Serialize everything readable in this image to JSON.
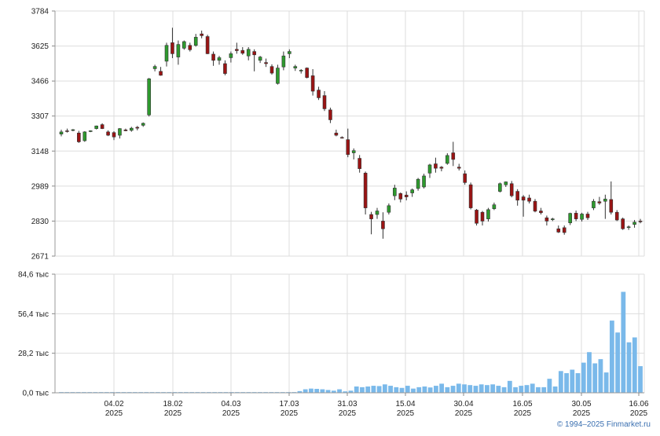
{
  "copyright": "© 1994–2025 Finmarket.ru",
  "chart_data": [
    {
      "type": "candlestick",
      "ylim": [
        2671,
        3784
      ],
      "yticks": [
        "3784",
        "3625",
        "3466",
        "3307",
        "3148",
        "2989",
        "2830",
        "2671"
      ],
      "grid": true,
      "colors": {
        "up": "#2e9a2e",
        "down": "#9a1414",
        "wick": "#333333",
        "grid": "#dddddd"
      },
      "candles": [
        [
          3225,
          3245,
          3215,
          3235
        ],
        [
          3240,
          3250,
          3232,
          3238
        ],
        [
          3242,
          3248,
          3238,
          3245
        ],
        [
          3230,
          3240,
          3185,
          3190
        ],
        [
          3195,
          3238,
          3190,
          3235
        ],
        [
          3238,
          3242,
          3234,
          3240
        ],
        [
          3250,
          3264,
          3246,
          3262
        ],
        [
          3268,
          3274,
          3248,
          3250
        ],
        [
          3235,
          3242,
          3216,
          3220
        ],
        [
          3232,
          3238,
          3198,
          3212
        ],
        [
          3220,
          3252,
          3205,
          3250
        ],
        [
          3244,
          3250,
          3238,
          3240
        ],
        [
          3242,
          3258,
          3236,
          3252
        ],
        [
          3256,
          3262,
          3242,
          3252
        ],
        [
          3265,
          3278,
          3258,
          3274
        ],
        [
          3312,
          3480,
          3305,
          3476
        ],
        [
          3522,
          3540,
          3510,
          3532
        ],
        [
          3510,
          3530,
          3490,
          3492
        ],
        [
          3556,
          3640,
          3532,
          3628
        ],
        [
          3640,
          3708,
          3570,
          3590
        ],
        [
          3575,
          3650,
          3540,
          3632
        ],
        [
          3615,
          3650,
          3608,
          3645
        ],
        [
          3628,
          3640,
          3600,
          3608
        ],
        [
          3628,
          3680,
          3622,
          3665
        ],
        [
          3680,
          3695,
          3660,
          3672
        ],
        [
          3668,
          3676,
          3588,
          3590
        ],
        [
          3588,
          3600,
          3535,
          3560
        ],
        [
          3560,
          3580,
          3540,
          3572
        ],
        [
          3545,
          3560,
          3492,
          3500
        ],
        [
          3572,
          3600,
          3550,
          3590
        ],
        [
          3610,
          3640,
          3590,
          3604
        ],
        [
          3605,
          3620,
          3585,
          3592
        ],
        [
          3580,
          3620,
          3560,
          3610
        ],
        [
          3600,
          3610,
          3510,
          3585
        ],
        [
          3560,
          3580,
          3548,
          3575
        ],
        [
          3550,
          3568,
          3530,
          3545
        ],
        [
          3532,
          3542,
          3495,
          3502
        ],
        [
          3455,
          3540,
          3450,
          3525
        ],
        [
          3530,
          3600,
          3515,
          3580
        ],
        [
          3590,
          3610,
          3570,
          3600
        ],
        [
          3525,
          3540,
          3512,
          3532
        ],
        [
          3514,
          3520,
          3500,
          3515
        ],
        [
          3525,
          3528,
          3478,
          3482
        ],
        [
          3490,
          3520,
          3400,
          3420
        ],
        [
          3425,
          3440,
          3380,
          3390
        ],
        [
          3400,
          3420,
          3330,
          3340
        ],
        [
          3335,
          3345,
          3275,
          3290
        ],
        [
          3230,
          3245,
          3215,
          3220
        ],
        [
          3210,
          3215,
          3205,
          3208
        ],
        [
          3200,
          3250,
          3120,
          3132
        ],
        [
          3140,
          3160,
          3110,
          3150
        ],
        [
          3115,
          3130,
          3050,
          3068
        ],
        [
          3048,
          3055,
          2860,
          2890
        ],
        [
          2860,
          2872,
          2770,
          2840
        ],
        [
          2860,
          2890,
          2840,
          2876
        ],
        [
          2830,
          2870,
          2750,
          2795
        ],
        [
          2870,
          2910,
          2860,
          2900
        ],
        [
          2945,
          2995,
          2925,
          2980
        ],
        [
          2955,
          2960,
          2915,
          2930
        ],
        [
          2948,
          2965,
          2924,
          2940
        ],
        [
          2958,
          2978,
          2940,
          2972
        ],
        [
          2978,
          3026,
          2968,
          3020
        ],
        [
          2985,
          3045,
          2978,
          3035
        ],
        [
          3048,
          3090,
          3026,
          3085
        ],
        [
          3090,
          3118,
          3050,
          3070
        ],
        [
          3075,
          3080,
          3056,
          3070
        ],
        [
          3092,
          3138,
          3086,
          3128
        ],
        [
          3140,
          3190,
          3080,
          3110
        ],
        [
          3075,
          3090,
          3060,
          3070
        ],
        [
          3045,
          3060,
          2995,
          3005
        ],
        [
          2995,
          3005,
          2883,
          2890
        ],
        [
          2880,
          2885,
          2810,
          2820
        ],
        [
          2870,
          2876,
          2810,
          2830
        ],
        [
          2840,
          2890,
          2828,
          2882
        ],
        [
          2886,
          2914,
          2880,
          2904
        ],
        [
          2965,
          3005,
          2960,
          3000
        ],
        [
          2995,
          3010,
          2985,
          3008
        ],
        [
          3000,
          3012,
          2938,
          2945
        ],
        [
          2965,
          2975,
          2900,
          2925
        ],
        [
          2940,
          2948,
          2850,
          2925
        ],
        [
          2935,
          2950,
          2910,
          2920
        ],
        [
          2920,
          2930,
          2870,
          2875
        ],
        [
          2876,
          2890,
          2860,
          2868
        ],
        [
          2845,
          2855,
          2810,
          2830
        ],
        [
          2838,
          2845,
          2830,
          2840
        ],
        [
          2795,
          2810,
          2776,
          2780
        ],
        [
          2800,
          2810,
          2768,
          2778
        ],
        [
          2822,
          2868,
          2812,
          2865
        ],
        [
          2866,
          2878,
          2830,
          2840
        ],
        [
          2838,
          2868,
          2828,
          2862
        ],
        [
          2862,
          2872,
          2835,
          2845
        ],
        [
          2890,
          2930,
          2880,
          2920
        ],
        [
          2918,
          2940,
          2904,
          2912
        ],
        [
          2920,
          2950,
          2840,
          2930
        ],
        [
          2928,
          3010,
          2860,
          2870
        ],
        [
          2870,
          2880,
          2830,
          2835
        ],
        [
          2840,
          2846,
          2790,
          2795
        ],
        [
          2802,
          2810,
          2790,
          2804
        ],
        [
          2815,
          2835,
          2800,
          2825
        ],
        [
          2830,
          2840,
          2820,
          2828
        ]
      ]
    },
    {
      "type": "bar",
      "unit": "тыс",
      "ylim": [
        0,
        84.6
      ],
      "yticks": [
        "84,6 тыс",
        "56,4 тыс",
        "28,2 тыс",
        "0,0 тыс"
      ],
      "color": "#7ab9ea",
      "values": [
        0.5,
        0.5,
        0.5,
        0.5,
        0.5,
        0.5,
        0.5,
        0.5,
        0.5,
        0.5,
        0.5,
        0.5,
        0.5,
        0.5,
        0.5,
        0.5,
        0.5,
        0.5,
        0.5,
        0.5,
        0.5,
        0.5,
        0.5,
        0.5,
        0.5,
        0.5,
        0.5,
        0.5,
        0.5,
        0.5,
        0.5,
        0.5,
        0.5,
        0.5,
        0.5,
        0.5,
        0.5,
        0.5,
        0.5,
        0.5,
        0.5,
        0.5,
        1.2,
        2.5,
        3.0,
        2.8,
        2.5,
        2.0,
        1.5,
        2.5,
        1.0,
        1.5,
        4.5,
        4.0,
        4.5,
        5.0,
        4.8,
        6.0,
        5.0,
        4.0,
        3.5,
        5.0,
        3.0,
        4.0,
        4.5,
        3.8,
        5.0,
        6.5,
        4.0,
        5.0,
        6.5,
        6.0,
        5.5,
        5.0,
        6.0,
        5.5,
        6.0,
        5.0,
        4.0,
        8.5,
        4.0,
        5.0,
        5.5,
        6.5,
        4.0,
        4.0,
        10.0,
        4.5,
        15.5,
        14.0,
        16.5,
        14.0,
        21.5,
        29.0,
        21.0,
        24.0,
        14.5,
        51.5,
        43.0,
        72.0,
        36.0,
        39.5,
        19.0
      ]
    }
  ],
  "x_axis": {
    "labels": [
      {
        "day": "04.02",
        "year": "2025"
      },
      {
        "day": "18.02",
        "year": "2025"
      },
      {
        "day": "04.03",
        "year": "2025"
      },
      {
        "day": "17.03",
        "year": "2025"
      },
      {
        "day": "31.03",
        "year": "2025"
      },
      {
        "day": "15.04",
        "year": "2025"
      },
      {
        "day": "30.04",
        "year": "2025"
      },
      {
        "day": "16.05",
        "year": "2025"
      },
      {
        "day": "30.05",
        "year": "2025"
      },
      {
        "day": "16.06",
        "year": "2025"
      }
    ]
  }
}
